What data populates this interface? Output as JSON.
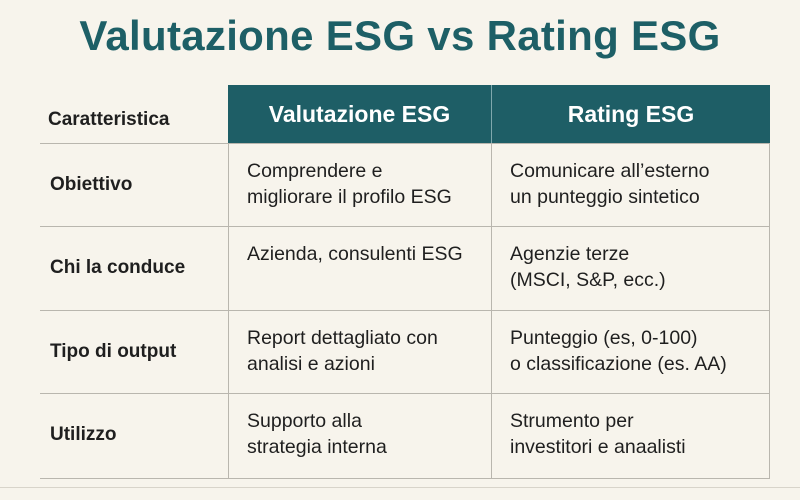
{
  "title": "Valutazione ESG vs Rating ESG",
  "table": {
    "headers": [
      "Caratteristica",
      "Valutazione ESG",
      "Rating ESG"
    ],
    "rows": [
      {
        "label": "Obiettivo",
        "valutazione": [
          "Comprendere e",
          "migliorare il profilo ESG"
        ],
        "rating": [
          "Comunicare all’esterno",
          "un punteggio sintetico"
        ]
      },
      {
        "label": "Chi la conduce",
        "valutazione": [
          "Azienda, consulenti ESG"
        ],
        "rating": [
          "Agenzie terze",
          "(MSCI, S&P, ecc.)"
        ]
      },
      {
        "label": "Tipo di output",
        "valutazione": [
          "Report dettagliato con",
          "analisi e azioni"
        ],
        "rating": [
          "Punteggio (es, 0-100)",
          "o classificazione (es. AA)"
        ]
      },
      {
        "label": "Utilizzo",
        "valutazione": [
          "Supporto alla",
          "strategia interna"
        ],
        "rating": [
          "Strumento per",
          "investitori e anaalisti"
        ]
      }
    ]
  },
  "colors": {
    "accent": "#1e5e66",
    "title": "#1d5f66",
    "background": "#f7f4ec"
  }
}
